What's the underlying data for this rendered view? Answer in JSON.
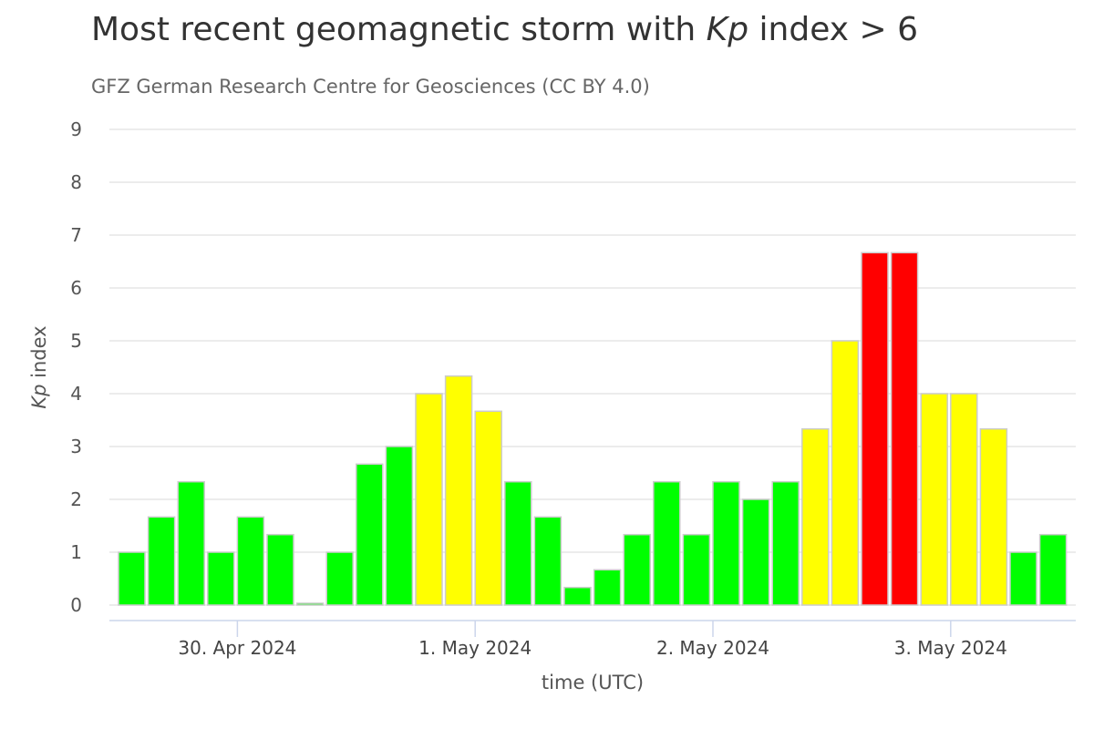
{
  "chart_data": {
    "type": "bar",
    "title_pre": "Most recent geomagnetic storm with ",
    "title_kp": "Kp",
    "title_post": " index > 6",
    "subtitle": "GFZ German Research Centre for Geosciences (CC BY 4.0)",
    "xlabel": "time (UTC)",
    "ylabel_kp": "Kp",
    "ylabel_rest": " index",
    "ylim": [
      0,
      9
    ],
    "yticks": [
      0,
      1,
      2,
      3,
      4,
      5,
      6,
      7,
      8,
      9
    ],
    "xtick_labels": [
      {
        "label": "30. Apr 2024",
        "bar_index": 4
      },
      {
        "label": "1. May 2024",
        "bar_index": 12
      },
      {
        "label": "2. May 2024",
        "bar_index": 20
      },
      {
        "label": "3. May 2024",
        "bar_index": 28
      }
    ],
    "interval_hours": 3,
    "values": [
      1.0,
      1.667,
      2.333,
      1.0,
      1.667,
      1.333,
      0.0,
      1.0,
      2.667,
      3.0,
      4.0,
      4.333,
      3.667,
      2.333,
      1.667,
      0.333,
      0.667,
      1.333,
      2.333,
      1.333,
      2.333,
      2.0,
      2.333,
      3.333,
      5.0,
      6.667,
      6.667,
      4.0,
      4.0,
      3.333,
      1.0,
      1.333
    ],
    "colors": {
      "low": "#00ff00",
      "moderate": "#ffff00",
      "storm": "#ff0000"
    },
    "grid": true,
    "legend": "none"
  }
}
